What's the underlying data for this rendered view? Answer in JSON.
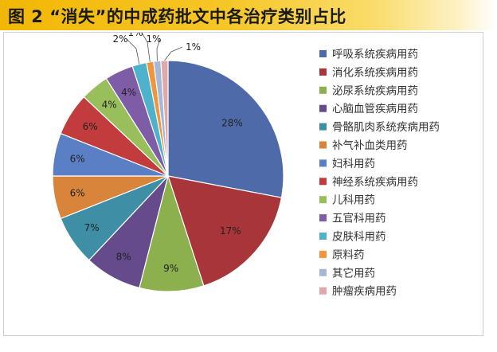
{
  "header": {
    "title": "图 2 “消失”的中成药批文中各治疗类别占比"
  },
  "chart_data": {
    "type": "pie",
    "title": "",
    "start_angle_deg": 0,
    "direction": "clockwise",
    "legend_position": "right",
    "slices": [
      {
        "label": "呼吸系统疾病用药",
        "value": 28,
        "display": "28%",
        "color": "#4f6aa8"
      },
      {
        "label": "消化系统疾病用药",
        "value": 17,
        "display": "17%",
        "color": "#a8353a"
      },
      {
        "label": "泌尿系统疾病用药",
        "value": 9,
        "display": "9%",
        "color": "#8cb04e"
      },
      {
        "label": "心脑血管疾病用药",
        "value": 8,
        "display": "8%",
        "color": "#654a8c"
      },
      {
        "label": "骨骼肌肉系统疾病用药",
        "value": 7,
        "display": "7%",
        "color": "#3e8ea5"
      },
      {
        "label": "补气补血类用药",
        "value": 6,
        "display": "6%",
        "color": "#d9843b"
      },
      {
        "label": "妇科用药",
        "value": 6,
        "display": "6%",
        "color": "#5a7fc4"
      },
      {
        "label": "神经系统疾病用药",
        "value": 6,
        "display": "6%",
        "color": "#c23b3d"
      },
      {
        "label": "儿科用药",
        "value": 4,
        "display": "4%",
        "color": "#98bf5b"
      },
      {
        "label": "五官科用药",
        "value": 4,
        "display": "4%",
        "color": "#7e5ca6"
      },
      {
        "label": "皮肤科用药",
        "value": 2,
        "display": "2%",
        "color": "#4fb2cc"
      },
      {
        "label": "原料药",
        "value": 1,
        "display": "1%",
        "color": "#f0953c"
      },
      {
        "label": "其它用药",
        "value": 1,
        "display": "1%",
        "color": "#a6b8d8"
      },
      {
        "label": "肿瘤疾病用药",
        "value": 1,
        "display": "1%",
        "color": "#dfa9a9"
      }
    ]
  }
}
